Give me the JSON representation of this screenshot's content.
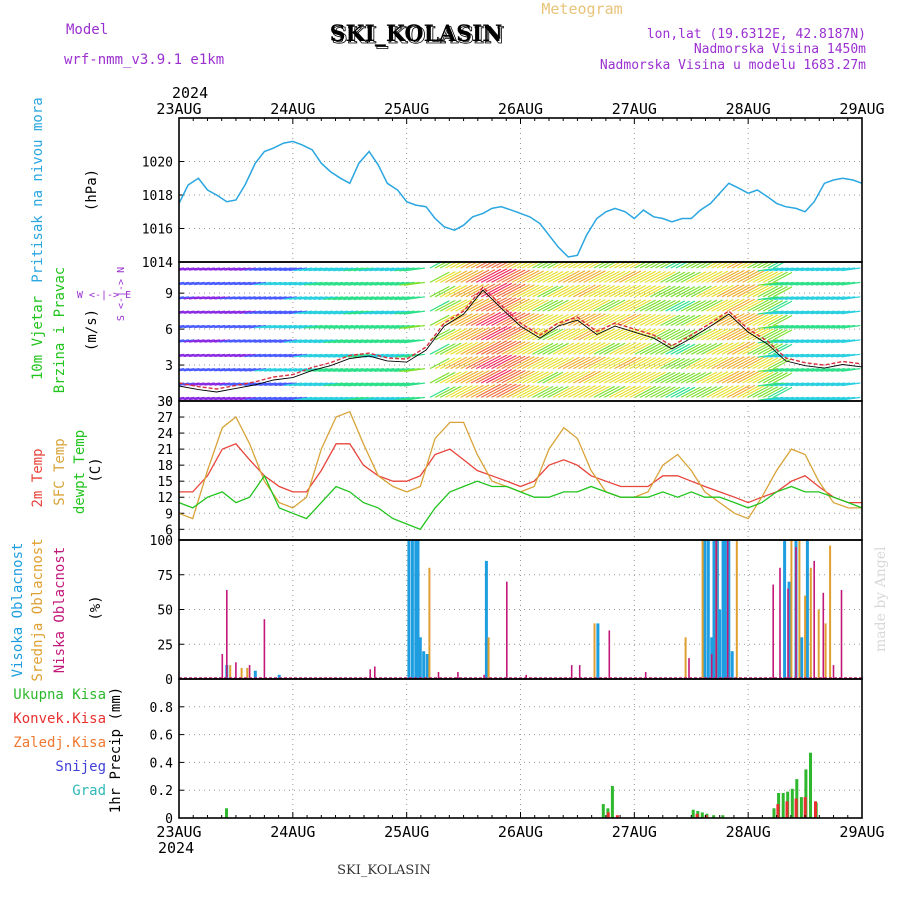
{
  "header": {
    "model_label": "Model",
    "model_name": "wrf-nmm_v3.9.1 e1km",
    "station": "SKI_KOLASIN",
    "meteogram": "Meteogram",
    "lonlat": "lon,lat (19.6312E, 42.8187N)",
    "altitude": "Nadmorska Visina 1450m",
    "model_altitude": "Nadmorska Visina u modelu 1683.27m",
    "year_top": "2024",
    "year_bottom": "2024",
    "footer": "SKI_KOLASIN",
    "watermark": "made by Angel"
  },
  "colors": {
    "pressure": "#2aa6e0",
    "temp2m": "#e8443a",
    "sfc": "#d8a43a",
    "dewpt": "#22c41e",
    "visoka": "#1e9ee0",
    "srednja": "#e0a030",
    "niska": "#c2187a",
    "ukupna": "#2eb82e",
    "konvek": "#e83030",
    "zaledj": "#f07830",
    "snijeg": "#4040d8",
    "grad": "#30b8b8",
    "wind_label": "#9b30d0"
  },
  "chart_data": [
    {
      "type": "line",
      "panel": "pressure",
      "ylabel": [
        "Pritisak na nivou mora",
        "(hPa)"
      ],
      "x_ticks": [
        "23AUG",
        "24AUG",
        "25AUG",
        "26AUG",
        "27AUG",
        "28AUG",
        "29AUG"
      ],
      "xlim_days": [
        0,
        6
      ],
      "ylim": [
        1014,
        1022.6
      ],
      "y_ticks": [
        "1014",
        "1016",
        "1018",
        "1020"
      ],
      "grid": true,
      "series": [
        {
          "x": [
            0,
            0.08,
            0.17,
            0.25,
            0.33,
            0.42,
            0.5,
            0.58,
            0.67,
            0.75,
            0.83,
            0.92,
            1,
            1.08,
            1.17,
            1.25,
            1.33,
            1.42,
            1.5,
            1.58,
            1.67,
            1.75,
            1.83,
            1.92,
            2,
            2.08,
            2.17,
            2.25,
            2.33,
            2.42,
            2.5,
            2.58,
            2.67,
            2.75,
            2.83,
            2.92,
            3,
            3.08,
            3.17,
            3.25,
            3.33,
            3.42,
            3.5,
            3.58,
            3.67,
            3.75,
            3.83,
            3.92,
            4,
            4.08,
            4.17,
            4.25,
            4.33,
            4.42,
            4.5,
            4.58,
            4.67,
            4.75,
            4.83,
            4.92,
            5,
            5.08,
            5.17,
            5.25,
            5.33,
            5.42,
            5.5,
            5.58,
            5.67,
            5.75,
            5.83,
            5.92,
            6
          ],
          "values": [
            1017.5,
            1018.6,
            1019.0,
            1018.3,
            1018.0,
            1017.6,
            1017.7,
            1018.6,
            1019.9,
            1020.6,
            1020.8,
            1021.1,
            1021.2,
            1021.0,
            1020.7,
            1019.9,
            1019.4,
            1019.0,
            1018.7,
            1019.9,
            1020.6,
            1019.8,
            1018.7,
            1018.3,
            1017.6,
            1017.4,
            1017.3,
            1016.6,
            1016.1,
            1015.9,
            1016.2,
            1016.7,
            1016.9,
            1017.2,
            1017.3,
            1017.1,
            1016.9,
            1016.7,
            1016.3,
            1015.6,
            1014.9,
            1014.3,
            1014.4,
            1015.6,
            1016.6,
            1017.0,
            1017.2,
            1017.0,
            1016.6,
            1017.1,
            1016.7,
            1016.6,
            1016.4,
            1016.6,
            1016.6,
            1017.1,
            1017.5,
            1018.1,
            1018.7,
            1018.4,
            1018.1,
            1018.3,
            1017.9,
            1017.5,
            1017.3,
            1017.2,
            1017.0,
            1017.6,
            1018.7,
            1018.9,
            1019.0,
            1018.9,
            1018.7
          ]
        }
      ]
    },
    {
      "type": "line",
      "panel": "wind",
      "ylabel": [
        "10m Vjetar",
        "Brzina i Pravac",
        "(m/s)"
      ],
      "direction_label": "W <-|-> E",
      "direction_ns": "S <-|-> N",
      "ylim": [
        0,
        11.6
      ],
      "y_ticks": [
        "0",
        "3",
        "6",
        "9"
      ],
      "grid": true,
      "series": [
        {
          "name": "10m Vjetar",
          "x": [
            0,
            0.17,
            0.33,
            0.5,
            0.67,
            0.83,
            1,
            1.17,
            1.33,
            1.5,
            1.67,
            1.83,
            2,
            2.17,
            2.33,
            2.5,
            2.67,
            2.83,
            3,
            3.17,
            3.33,
            3.5,
            3.67,
            3.83,
            4,
            4.17,
            4.33,
            4.5,
            4.67,
            4.83,
            5,
            5.17,
            5.33,
            5.5,
            5.67,
            5.83,
            6
          ],
          "values": [
            1.5,
            1.2,
            1.0,
            1.3,
            1.6,
            2.0,
            2.2,
            2.8,
            3.2,
            3.8,
            4.0,
            3.6,
            3.5,
            4.5,
            6.5,
            7.5,
            9.5,
            8.0,
            6.5,
            5.5,
            6.5,
            7.0,
            5.8,
            6.5,
            6.0,
            5.5,
            4.6,
            5.5,
            6.5,
            7.5,
            6.0,
            5.0,
            3.6,
            3.2,
            3.0,
            3.3,
            3.1
          ]
        }
      ]
    },
    {
      "type": "line",
      "panel": "temperature",
      "ylabel": [
        "2m Temp",
        "SFC Temp",
        "dewpt Temp",
        "(C)"
      ],
      "ylim": [
        4,
        30
      ],
      "y_ticks": [
        "6",
        "9",
        "12",
        "15",
        "18",
        "21",
        "24",
        "27",
        "30"
      ],
      "grid": true,
      "series": [
        {
          "name": "2m Temp",
          "x": [
            0,
            0.12,
            0.25,
            0.38,
            0.5,
            0.62,
            0.75,
            0.88,
            1,
            1.12,
            1.25,
            1.38,
            1.5,
            1.62,
            1.75,
            1.88,
            2,
            2.12,
            2.25,
            2.38,
            2.5,
            2.62,
            2.75,
            2.88,
            3,
            3.12,
            3.25,
            3.38,
            3.5,
            3.62,
            3.75,
            3.88,
            4,
            4.12,
            4.25,
            4.38,
            4.5,
            4.62,
            4.75,
            4.88,
            5,
            5.12,
            5.25,
            5.38,
            5.5,
            5.62,
            5.75,
            5.88,
            6
          ],
          "values": [
            13,
            13,
            16,
            21,
            22,
            19,
            16,
            14,
            13,
            13,
            17,
            22,
            22,
            18,
            16,
            15,
            15,
            16,
            20,
            21,
            19,
            17,
            16,
            15,
            14,
            15,
            18,
            19,
            18,
            16,
            15,
            14,
            14,
            14,
            16,
            16,
            15,
            14,
            13,
            12,
            11,
            12,
            13,
            15,
            16,
            14,
            12,
            11,
            11
          ]
        },
        {
          "name": "SFC Temp",
          "x": [
            0,
            0.12,
            0.25,
            0.38,
            0.5,
            0.62,
            0.75,
            0.88,
            1,
            1.12,
            1.25,
            1.38,
            1.5,
            1.62,
            1.75,
            1.88,
            2,
            2.12,
            2.25,
            2.38,
            2.5,
            2.62,
            2.75,
            2.88,
            3,
            3.12,
            3.25,
            3.38,
            3.5,
            3.62,
            3.75,
            3.88,
            4,
            4.12,
            4.25,
            4.38,
            4.5,
            4.62,
            4.75,
            4.88,
            5,
            5.12,
            5.25,
            5.38,
            5.5,
            5.62,
            5.75,
            5.88,
            6
          ],
          "values": [
            9,
            8,
            17,
            25,
            27,
            22,
            15,
            11,
            10,
            12,
            21,
            27,
            28,
            22,
            16,
            14,
            13,
            14,
            23,
            26,
            26,
            20,
            15,
            14,
            13,
            14,
            21,
            25,
            23,
            17,
            13,
            12,
            12,
            13,
            18,
            20,
            17,
            13,
            11,
            9,
            8,
            12,
            17,
            21,
            20,
            15,
            11,
            10,
            10
          ]
        },
        {
          "name": "dewpt Temp",
          "x": [
            0,
            0.12,
            0.25,
            0.38,
            0.5,
            0.62,
            0.75,
            0.88,
            1,
            1.12,
            1.25,
            1.38,
            1.5,
            1.62,
            1.75,
            1.88,
            2,
            2.12,
            2.25,
            2.38,
            2.5,
            2.62,
            2.75,
            2.88,
            3,
            3.12,
            3.25,
            3.38,
            3.5,
            3.62,
            3.75,
            3.88,
            4,
            4.12,
            4.25,
            4.38,
            4.5,
            4.62,
            4.75,
            4.88,
            5,
            5.12,
            5.25,
            5.38,
            5.5,
            5.62,
            5.75,
            5.88,
            6
          ],
          "values": [
            11,
            10,
            12,
            13,
            11,
            12,
            16,
            10,
            9,
            8,
            11,
            14,
            13,
            11,
            10,
            8,
            7,
            6,
            10,
            13,
            14,
            15,
            14,
            14,
            13,
            12,
            12,
            13,
            13,
            14,
            13,
            12,
            12,
            12,
            13,
            12,
            13,
            12,
            12,
            11,
            10,
            11,
            13,
            14,
            13,
            13,
            12,
            11,
            10
          ]
        }
      ]
    },
    {
      "type": "bar",
      "panel": "clouds",
      "ylabel": [
        "Visoka Oblacnost",
        "Srednja Oblacnost",
        "Niska Oblacnost",
        "(%)"
      ],
      "ylim": [
        0,
        100
      ],
      "y_ticks": [
        "0",
        "25",
        "50",
        "75",
        "100"
      ],
      "grid": true,
      "series": [
        {
          "name": "Visoka Oblacnost",
          "x": [
            0.42,
            0.67,
            0.88,
            2.02,
            2.05,
            2.08,
            2.1,
            2.12,
            2.15,
            2.18,
            2.7,
            3.68,
            4.62,
            4.65,
            4.68,
            4.7,
            4.73,
            4.75,
            4.78,
            4.8,
            4.83,
            4.86,
            5.32,
            5.36,
            5.42,
            5.47,
            5.52
          ],
          "values": [
            10,
            6,
            3,
            100,
            100,
            100,
            100,
            30,
            20,
            18,
            85,
            40,
            100,
            100,
            30,
            100,
            100,
            50,
            100,
            100,
            100,
            20,
            100,
            70,
            100,
            30,
            100
          ]
        },
        {
          "name": "Srednja Oblacnost",
          "x": [
            0.45,
            0.55,
            0.6,
            2.2,
            2.72,
            3.65,
            4.45,
            4.6,
            4.72,
            4.9,
            5.38,
            5.45,
            5.5,
            5.55,
            5.62,
            5.68,
            5.72
          ],
          "values": [
            10,
            8,
            8,
            80,
            30,
            40,
            30,
            100,
            100,
            100,
            100,
            100,
            60,
            80,
            50,
            40,
            96
          ]
        },
        {
          "name": "Niska Oblacnost",
          "x": [
            0.38,
            0.42,
            0.5,
            0.62,
            0.75,
            1.68,
            1.72,
            2.28,
            2.45,
            2.68,
            2.88,
            3.05,
            3.45,
            3.52,
            3.78,
            4.1,
            4.48,
            4.68,
            4.72,
            4.82,
            5.22,
            5.28,
            5.35,
            5.42,
            5.58,
            5.66,
            5.75,
            5.82
          ],
          "values": [
            18,
            64,
            12,
            10,
            43,
            7,
            9,
            5,
            5,
            3,
            70,
            3,
            10,
            10,
            35,
            5,
            15,
            18,
            100,
            100,
            68,
            80,
            65,
            95,
            85,
            62,
            10,
            64
          ]
        }
      ]
    },
    {
      "type": "bar",
      "panel": "precip",
      "ylabel": [
        "1hr Precip (mm)"
      ],
      "legend": [
        "Ukupna Kisa",
        "Konvek.Kisa",
        "Zaledj.Kisa",
        "Snijeg",
        "Grad"
      ],
      "ylim": [
        0,
        1.0
      ],
      "y_ticks": [
        "0",
        "0.2",
        "0.4",
        "0.6",
        "0.8"
      ],
      "grid": true,
      "series": [
        {
          "name": "Ukupna Kisa",
          "x": [
            0.42,
            3.73,
            3.77,
            3.81,
            4.52,
            4.56,
            4.6,
            4.64,
            4.7,
            4.78,
            5.23,
            5.27,
            5.31,
            5.35,
            5.39,
            5.43,
            5.47,
            5.51,
            5.55,
            5.6
          ],
          "values": [
            0.07,
            0.1,
            0.07,
            0.23,
            0.06,
            0.05,
            0.04,
            0.03,
            0.02,
            0.02,
            0.07,
            0.18,
            0.18,
            0.19,
            0.21,
            0.28,
            0.15,
            0.35,
            0.47,
            0.11
          ]
        },
        {
          "name": "Konvek.Kisa",
          "x": [
            3.76,
            3.84,
            4.54,
            4.62,
            5.25,
            5.33,
            5.41,
            5.49,
            5.58
          ],
          "values": [
            0.04,
            0.02,
            0.03,
            0.02,
            0.1,
            0.12,
            0.14,
            0.15,
            0.12
          ]
        }
      ]
    }
  ]
}
